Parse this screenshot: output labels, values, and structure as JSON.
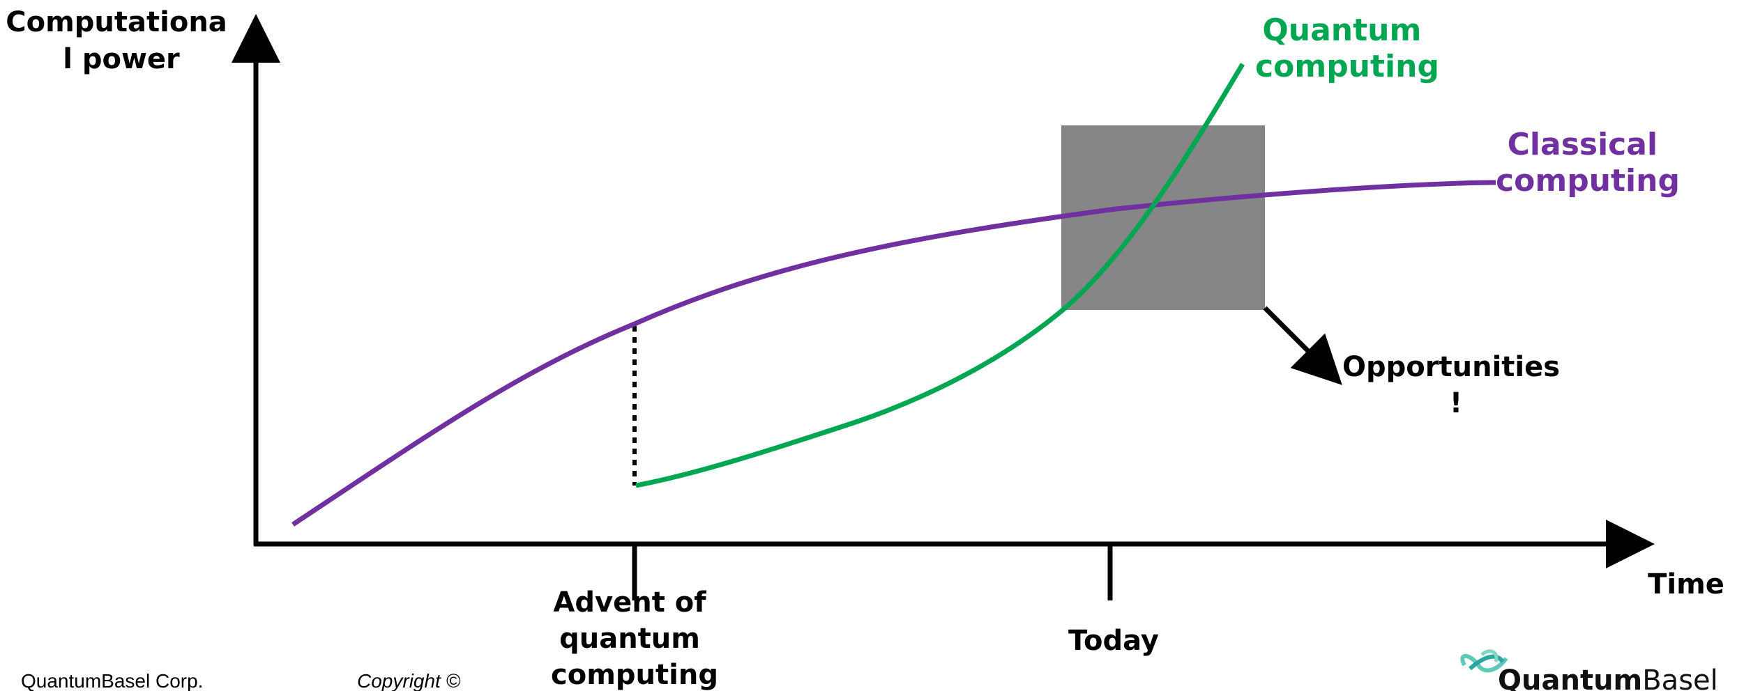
{
  "labels": {
    "y_axis": [
      "Computationa",
      "l power"
    ],
    "x_axis": "Time",
    "quantum": [
      "Quantum",
      "computing"
    ],
    "classical": [
      "Classical",
      "computing"
    ],
    "opportunities": [
      "Opportunities",
      "!"
    ],
    "advent": [
      "Advent of",
      "quantum",
      "computing"
    ],
    "today": "Today"
  },
  "footer": {
    "company": "QuantumBasel Corp.",
    "copyright": "Copyright ©",
    "logo_text": "QuantumBasel"
  },
  "colors": {
    "quantum": "#00a651",
    "classical": "#7030a0",
    "highlight_box": "#868686",
    "axis": "#000000"
  }
}
